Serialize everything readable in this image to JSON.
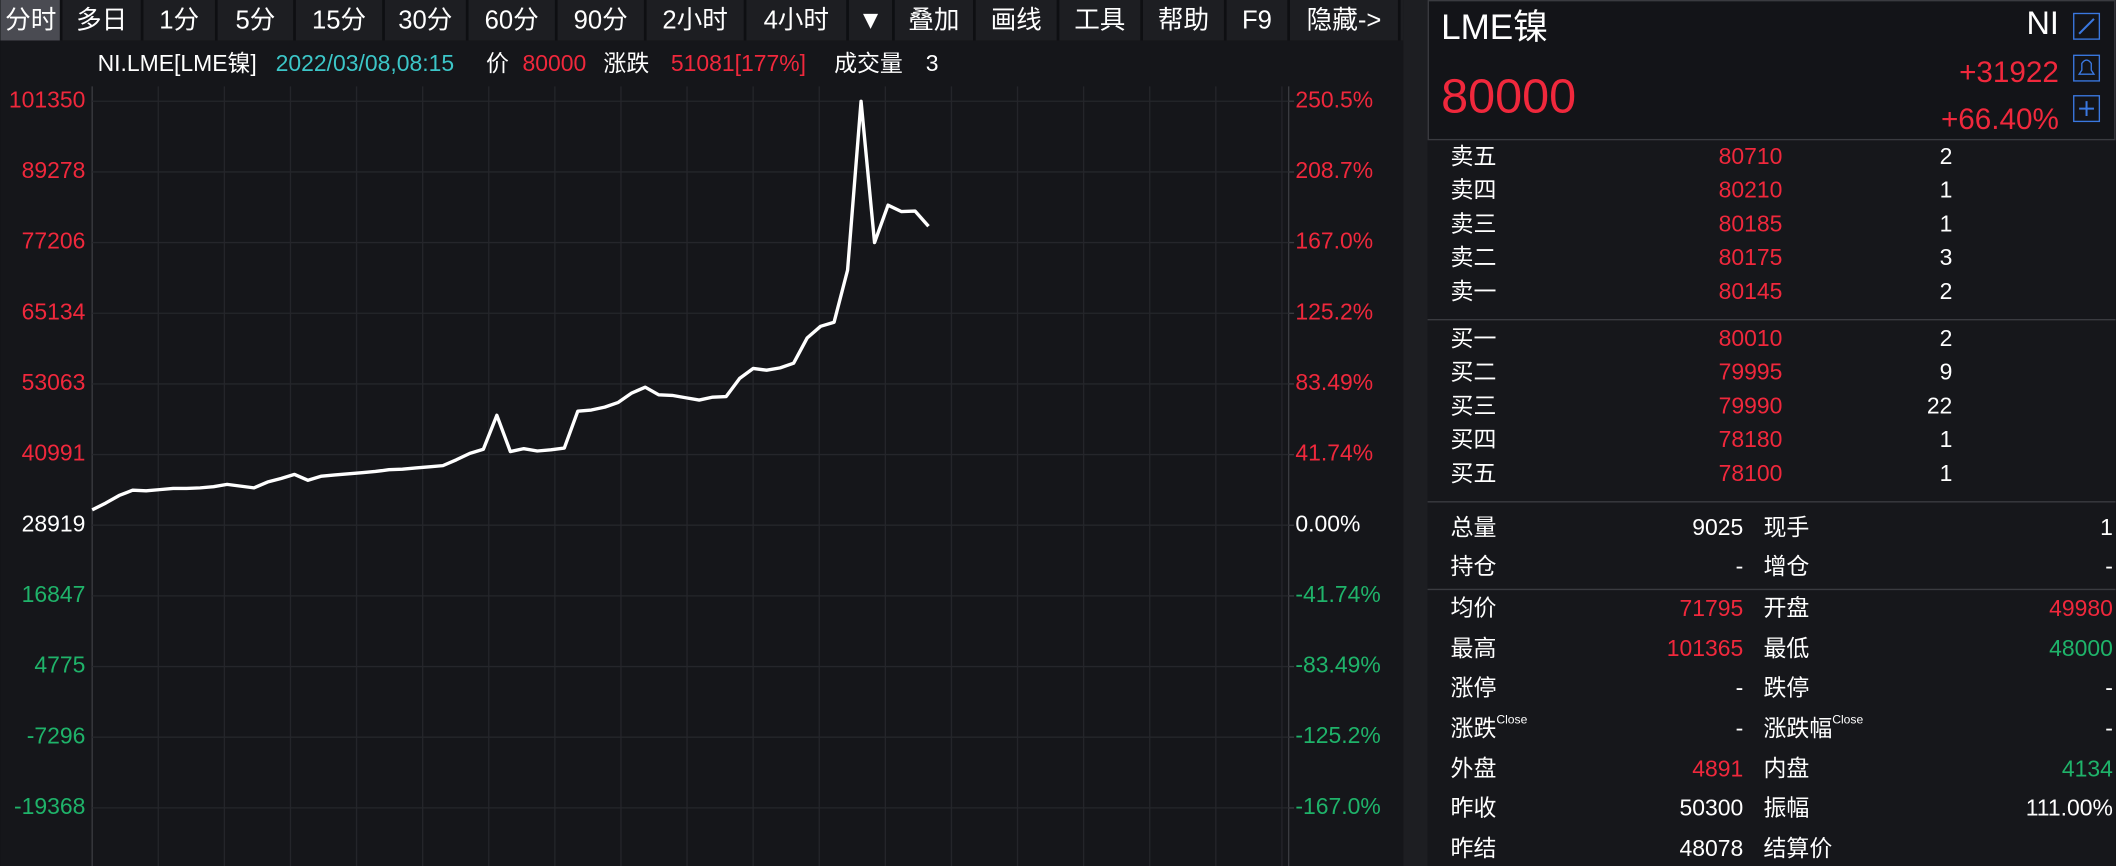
{
  "toolbar": [
    "分时",
    "多日",
    "1分",
    "5分",
    "15分",
    "30分",
    "60分",
    "90分",
    "2小时",
    "4小时",
    "▼",
    "叠加",
    "画线",
    "工具",
    "帮助",
    "F9",
    "隐藏->"
  ],
  "info": [
    {
      "text": "NI.LME[LME镍]",
      "color": "#ffffff"
    },
    {
      "text": "2022/03/08,08:15",
      "color": "#3cc6c8"
    },
    {
      "text": "价",
      "color": "#ffffff"
    },
    {
      "text": "80000",
      "color": "#f0283c"
    },
    {
      "text": "涨跌",
      "color": "#ffffff"
    },
    {
      "text": "51081[177%]",
      "color": "#f0283c"
    },
    {
      "text": "成交量",
      "color": "#ffffff"
    },
    {
      "text": "3",
      "color": "#ffffff"
    }
  ],
  "chart_data": {
    "type": "line",
    "color": "#ffffff",
    "grid": true,
    "values": [
      31544,
      32700,
      34000,
      34900,
      34800,
      35000,
      35200,
      35200,
      35300,
      35500,
      35900,
      35600,
      35300,
      36300,
      36900,
      37600,
      36600,
      37300,
      37500,
      37700,
      37900,
      38100,
      38400,
      38500,
      38700,
      38900,
      39100,
      40100,
      41200,
      41900,
      47700,
      41500,
      42000,
      41600,
      41800,
      42100,
      48400,
      48600,
      49100,
      49900,
      51500,
      52500,
      51200,
      51100,
      50700,
      50300,
      50800,
      50900,
      54000,
      55700,
      55400,
      55800,
      56600,
      60900,
      62900,
      63600,
      72500,
      101350,
      77200,
      83600,
      82500,
      82600,
      80000
    ],
    "ylim": [
      -29300,
      103900
    ],
    "yticks": [
      101350,
      89278,
      77206,
      65134,
      53063,
      40991,
      28919,
      16847,
      4775,
      -7296,
      -19368
    ],
    "y2lim": [
      -201.3,
      259.3
    ],
    "y2ticks": [
      {
        "value": 250.5,
        "label": "250.5%"
      },
      {
        "value": 208.7,
        "label": "208.7%"
      },
      {
        "value": 167.0,
        "label": "167.0%"
      },
      {
        "value": 125.2,
        "label": "125.2%"
      },
      {
        "value": 83.49,
        "label": "83.49%"
      },
      {
        "value": 41.74,
        "label": "41.74%"
      },
      {
        "value": 0,
        "label": "0.00%"
      },
      {
        "value": -41.74,
        "label": "-41.74%"
      },
      {
        "value": -83.49,
        "label": "-83.49%"
      },
      {
        "value": -125.2,
        "label": "-125.2%"
      },
      {
        "value": -167.0,
        "label": "-167.0%"
      }
    ],
    "up_color": "#f0283c",
    "down_color": "#1fb36a",
    "flat_color": "#ffffff"
  },
  "header": {
    "symbol": "LME镍",
    "code": "NI",
    "price": "80000",
    "change": "+31922",
    "change_pct": "+66.40%"
  },
  "asks": [
    [
      "卖五",
      "80710",
      "2"
    ],
    [
      "卖四",
      "80210",
      "1"
    ],
    [
      "卖三",
      "80185",
      "1"
    ],
    [
      "卖二",
      "80175",
      "3"
    ],
    [
      "卖一",
      "80145",
      "2"
    ]
  ],
  "bids": [
    [
      "买一",
      "80010",
      "2"
    ],
    [
      "买二",
      "79995",
      "9"
    ],
    [
      "买三",
      "79990",
      "22"
    ],
    [
      "买四",
      "78180",
      "1"
    ],
    [
      "买五",
      "78100",
      "1"
    ]
  ],
  "stats": [
    [
      {
        "label": "总量",
        "value": "9025",
        "color": "#ffffff"
      },
      {
        "label": "现手",
        "value": "1",
        "color": "#ffffff"
      }
    ],
    [
      {
        "label": "持仓",
        "value": "-",
        "color": "#ffffff"
      },
      {
        "label": "增仓",
        "value": "-",
        "color": "#ffffff"
      }
    ],
    [
      {
        "label": "均价",
        "value": "71795",
        "color": "#f0283c"
      },
      {
        "label": "开盘",
        "value": "49980",
        "color": "#f0283c"
      }
    ],
    [
      {
        "label": "最高",
        "value": "101365",
        "color": "#f0283c"
      },
      {
        "label": "最低",
        "value": "48000",
        "color": "#1fb36a"
      }
    ],
    [
      {
        "label": "涨停",
        "value": "-",
        "color": "#ffffff"
      },
      {
        "label": "跌停",
        "value": "-",
        "color": "#ffffff"
      }
    ],
    [
      {
        "label": "涨跌",
        "sup": "Close",
        "value": "-",
        "color": "#ffffff"
      },
      {
        "label": "涨跌幅",
        "sup": "Close",
        "value": "-",
        "color": "#ffffff"
      }
    ],
    [
      {
        "label": "外盘",
        "value": "4891",
        "color": "#f0283c"
      },
      {
        "label": "内盘",
        "value": "4134",
        "color": "#1fb36a"
      }
    ],
    [
      {
        "label": "昨收",
        "value": "50300",
        "color": "#ffffff"
      },
      {
        "label": "振幅",
        "value": "111.00%",
        "color": "#ffffff"
      }
    ],
    [
      {
        "label": "昨结",
        "value": "48078",
        "color": "#ffffff"
      },
      {
        "label": "结算价",
        "color": "#ffffff"
      }
    ]
  ]
}
